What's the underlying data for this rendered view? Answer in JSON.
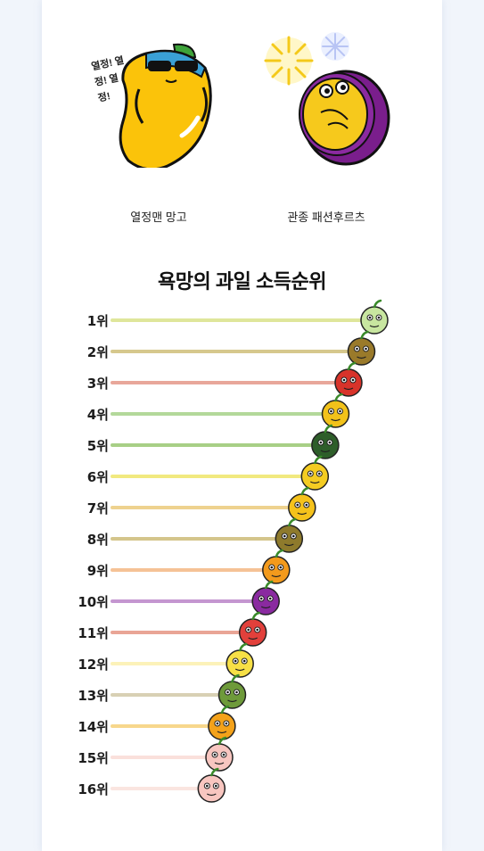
{
  "characters": [
    {
      "name": "열정맨 망고",
      "caption": "열정! 열정! 열정!"
    },
    {
      "name": "관종 패션후르츠"
    }
  ],
  "chart_data": {
    "type": "bar",
    "orientation": "horizontal",
    "title": "욕망의 과일 소득순위",
    "xlabel": "",
    "ylabel": "",
    "grid": false,
    "legend": "none",
    "categories": [
      "1위",
      "2위",
      "3위",
      "4위",
      "5위",
      "6위",
      "7위",
      "8위",
      "9위",
      "10위",
      "11위",
      "12위",
      "13위",
      "14위",
      "15위",
      "16위"
    ],
    "values": [
      100,
      95,
      90,
      85,
      81,
      77,
      72,
      67,
      62,
      58,
      53,
      48,
      45,
      41,
      40,
      37
    ],
    "colors": [
      "#dfe69b",
      "#d6c88d",
      "#e8a79a",
      "#b3d89a",
      "#a8cf86",
      "#f1e97f",
      "#eed28f",
      "#d4c58b",
      "#f5c296",
      "#c496d0",
      "#e9a596",
      "#fcf2b9",
      "#d8d0b4",
      "#f7d78c",
      "#fae0db",
      "#fae5e0"
    ],
    "fruits": [
      "grape",
      "kiwi",
      "apple",
      "pineapple",
      "watermelon",
      "banana",
      "mango",
      "kiwi",
      "orange",
      "passionfruit",
      "strawberry",
      "lemon",
      "avocado",
      "tangerine",
      "peach",
      "peach"
    ],
    "fruit_colors": [
      "#c8e6a0",
      "#9a7a2a",
      "#d8332a",
      "#f2c21a",
      "#2e5e2a",
      "#f4cc22",
      "#f5c21b",
      "#8e7a2c",
      "#f39a1c",
      "#8a2aa0",
      "#e2403b",
      "#f7e046",
      "#6e9a3a",
      "#f4a21a",
      "#f8c6c0",
      "#f8c6c0"
    ]
  }
}
